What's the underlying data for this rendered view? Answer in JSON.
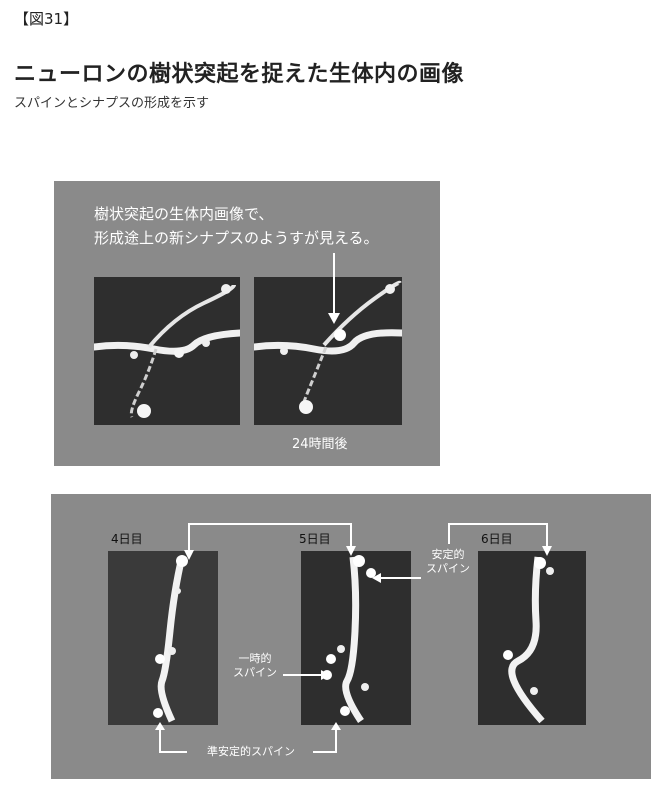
{
  "figure_label": "【図31】",
  "title": "ニューロンの樹状突起を捉えた生体内の画像",
  "subtitle": "スパインとシナプスの形成を示す",
  "top_panel": {
    "caption_line1": "樹状突起の生体内画像で、",
    "caption_line2": "形成途上の新シナプスのようすが見える。",
    "time_label": "24時間後"
  },
  "bottom_panel": {
    "day_labels": [
      "4日目",
      "5日目",
      "6日目"
    ],
    "stable_label_line1": "安定的",
    "stable_label_line2": "スパイン",
    "transient_label_line1": "一時的",
    "transient_label_line2": "スパイン",
    "semi_stable_label": "準安定的スパイン"
  }
}
